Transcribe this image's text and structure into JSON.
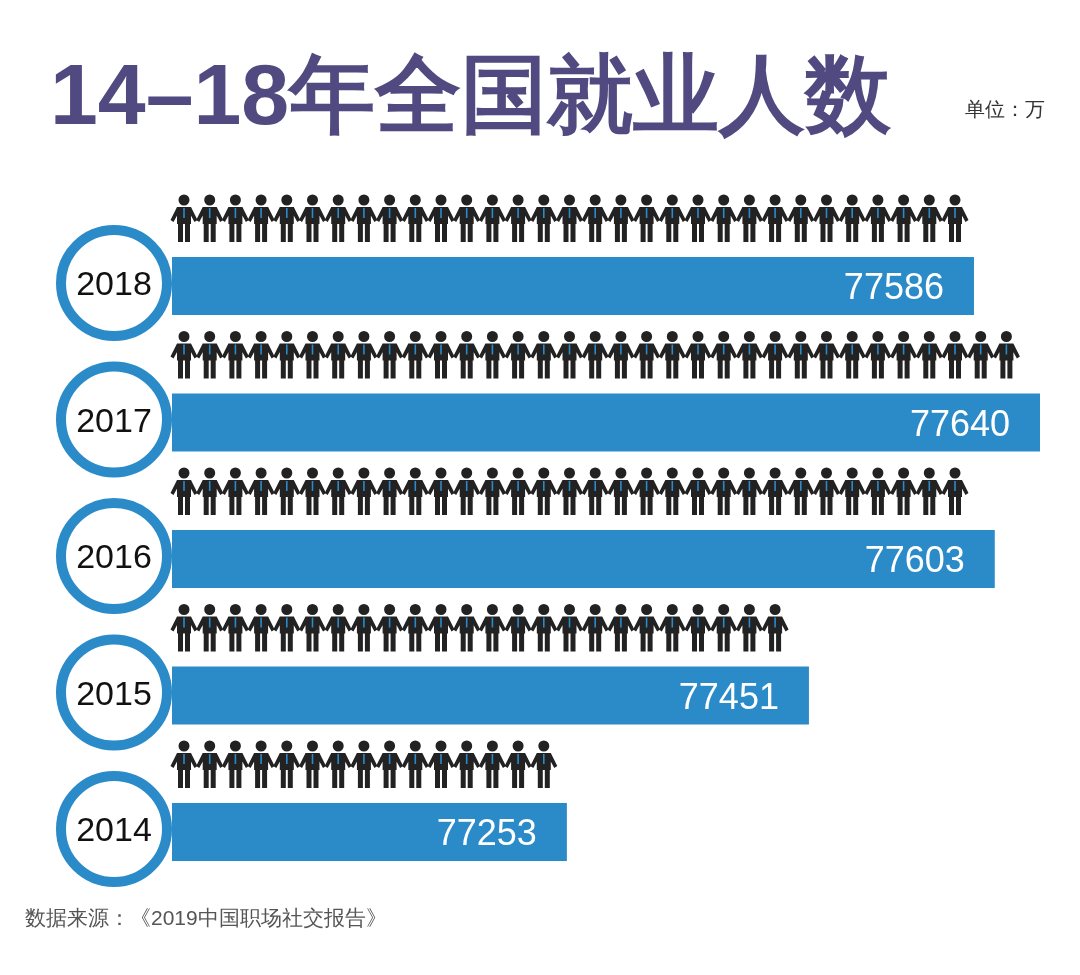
{
  "chart_data": {
    "type": "bar",
    "orientation": "horizontal",
    "title": "14–18年全国就业人数",
    "subtitle": "单位：万",
    "categories": [
      "2018",
      "2017",
      "2016",
      "2015",
      "2014"
    ],
    "values": [
      77586,
      77640,
      77603,
      77451,
      77253
    ],
    "color": "#2b8bc9",
    "xlim": [
      76930,
      77640
    ],
    "tick_labels": "y",
    "data_labels": true,
    "annotations": [
      "数据来源：《2019中国职场社交报告》"
    ]
  }
}
